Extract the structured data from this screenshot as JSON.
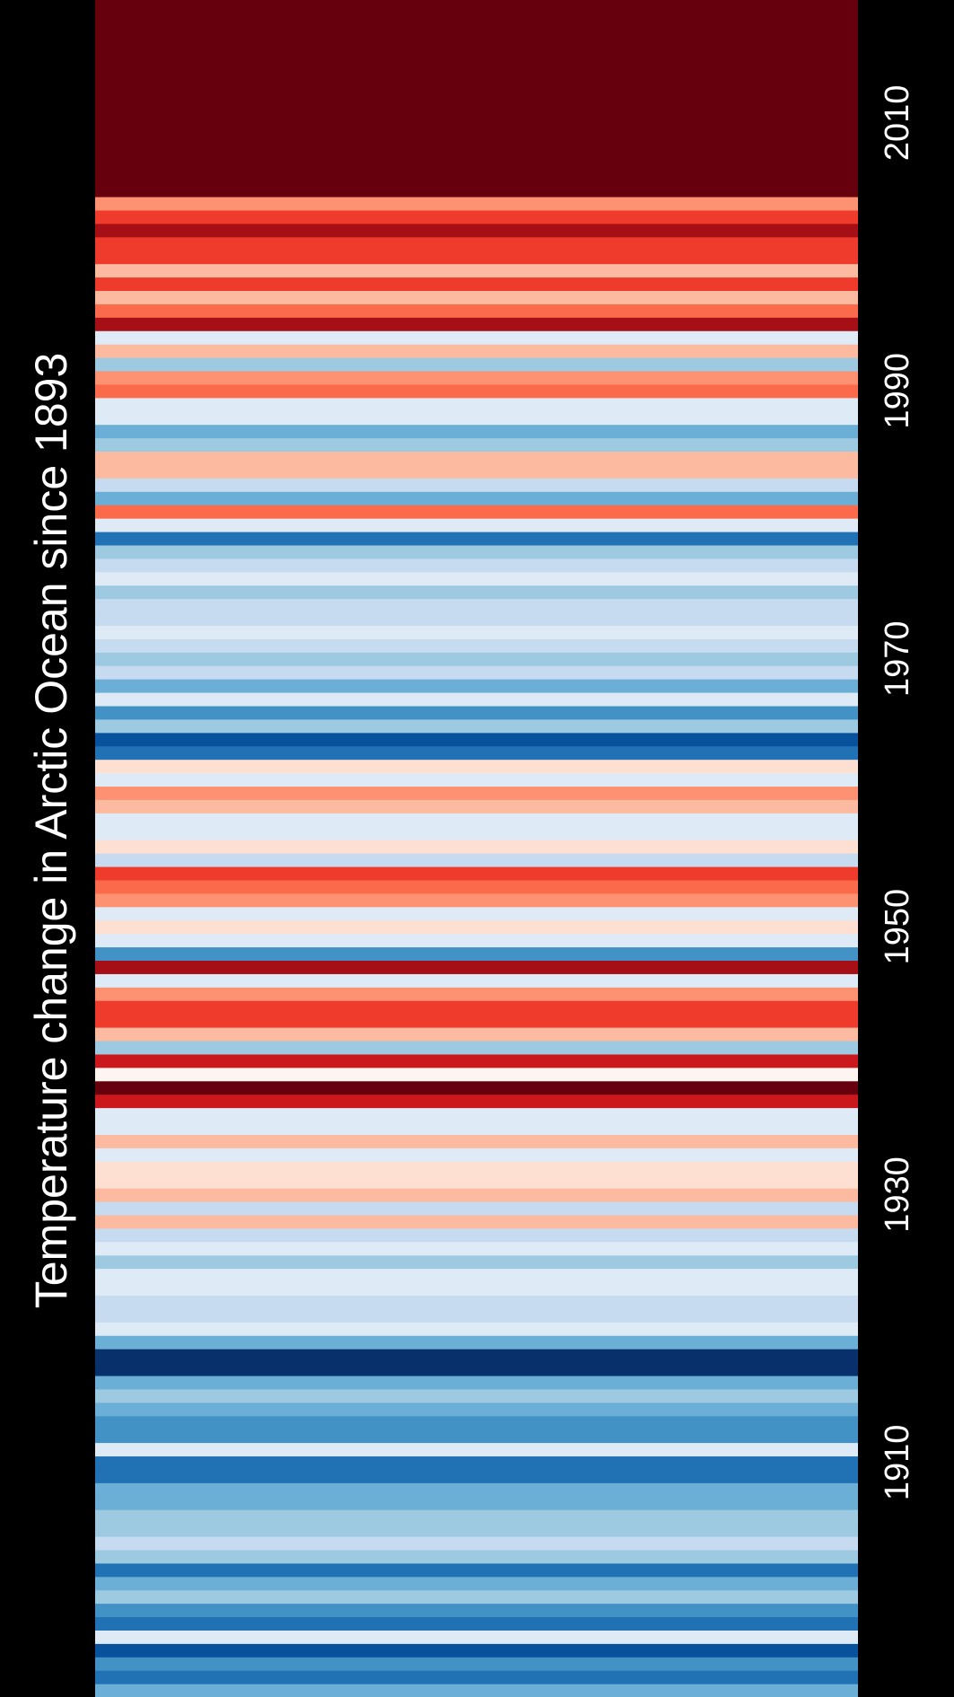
{
  "chart_data": {
    "type": "heatmap",
    "variant": "warming-stripes",
    "orientation": "vertical",
    "title": "Temperature change in Arctic Ocean since 1893",
    "time_axis": {
      "label": "",
      "direction": "bottom-to-top",
      "range": [
        1893,
        2022
      ],
      "ticks": [
        {
          "value": 1910,
          "label": "1910"
        },
        {
          "value": 1930,
          "label": "1930"
        },
        {
          "value": 1950,
          "label": "1950"
        },
        {
          "value": 1970,
          "label": "1970"
        },
        {
          "value": 1990,
          "label": "1990"
        },
        {
          "value": 2010,
          "label": "2010"
        }
      ]
    },
    "colormap": "RdBu_r",
    "legend": "none",
    "grid": false,
    "background": "#000000",
    "text_color": "#ffffff",
    "missing_years_color": "#67000d",
    "missing_years_range": [
      2008,
      2022
    ],
    "stripes": [
      {
        "year": 1893,
        "color": "#6baed6"
      },
      {
        "year": 1894,
        "color": "#2171b5"
      },
      {
        "year": 1895,
        "color": "#4292c6"
      },
      {
        "year": 1896,
        "color": "#08519c"
      },
      {
        "year": 1897,
        "color": "#deebf7"
      },
      {
        "year": 1898,
        "color": "#2171b5"
      },
      {
        "year": 1899,
        "color": "#4292c6"
      },
      {
        "year": 1900,
        "color": "#9ecae1"
      },
      {
        "year": 1901,
        "color": "#6baed6"
      },
      {
        "year": 1902,
        "color": "#2171b5"
      },
      {
        "year": 1903,
        "color": "#9ecae1"
      },
      {
        "year": 1904,
        "color": "#c6dbef"
      },
      {
        "year": 1905,
        "color": "#9ecae1"
      },
      {
        "year": 1906,
        "color": "#9ecae1"
      },
      {
        "year": 1907,
        "color": "#6baed6"
      },
      {
        "year": 1908,
        "color": "#6baed6"
      },
      {
        "year": 1909,
        "color": "#2171b5"
      },
      {
        "year": 1910,
        "color": "#2171b5"
      },
      {
        "year": 1911,
        "color": "#deebf7"
      },
      {
        "year": 1912,
        "color": "#4292c6"
      },
      {
        "year": 1913,
        "color": "#4292c6"
      },
      {
        "year": 1914,
        "color": "#6baed6"
      },
      {
        "year": 1915,
        "color": "#9ecae1"
      },
      {
        "year": 1916,
        "color": "#6baed6"
      },
      {
        "year": 1917,
        "color": "#08306b"
      },
      {
        "year": 1918,
        "color": "#08306b"
      },
      {
        "year": 1919,
        "color": "#6baed6"
      },
      {
        "year": 1920,
        "color": "#deebf7"
      },
      {
        "year": 1921,
        "color": "#c6dbef"
      },
      {
        "year": 1922,
        "color": "#c6dbef"
      },
      {
        "year": 1923,
        "color": "#deebf7"
      },
      {
        "year": 1924,
        "color": "#deebf7"
      },
      {
        "year": 1925,
        "color": "#9ecae1"
      },
      {
        "year": 1926,
        "color": "#deebf7"
      },
      {
        "year": 1927,
        "color": "#c6dbef"
      },
      {
        "year": 1928,
        "color": "#fcbba1"
      },
      {
        "year": 1929,
        "color": "#c6dbef"
      },
      {
        "year": 1930,
        "color": "#fcbba1"
      },
      {
        "year": 1931,
        "color": "#fee0d2"
      },
      {
        "year": 1932,
        "color": "#fee0d2"
      },
      {
        "year": 1933,
        "color": "#deebf7"
      },
      {
        "year": 1934,
        "color": "#fcbba1"
      },
      {
        "year": 1935,
        "color": "#deebf7"
      },
      {
        "year": 1936,
        "color": "#deebf7"
      },
      {
        "year": 1937,
        "color": "#cb181d"
      },
      {
        "year": 1938,
        "color": "#67000d"
      },
      {
        "year": 1939,
        "color": "#fff5f0"
      },
      {
        "year": 1940,
        "color": "#cb181d"
      },
      {
        "year": 1941,
        "color": "#9ecae1"
      },
      {
        "year": 1942,
        "color": "#fcbba1"
      },
      {
        "year": 1943,
        "color": "#ef3b2c"
      },
      {
        "year": 1944,
        "color": "#ef3b2c"
      },
      {
        "year": 1945,
        "color": "#fc9272"
      },
      {
        "year": 1946,
        "color": "#deebf7"
      },
      {
        "year": 1947,
        "color": "#a50f15"
      },
      {
        "year": 1948,
        "color": "#4292c6"
      },
      {
        "year": 1949,
        "color": "#deebf7"
      },
      {
        "year": 1950,
        "color": "#fee0d2"
      },
      {
        "year": 1951,
        "color": "#deebf7"
      },
      {
        "year": 1952,
        "color": "#fc9272"
      },
      {
        "year": 1953,
        "color": "#fb6a4a"
      },
      {
        "year": 1954,
        "color": "#ef3b2c"
      },
      {
        "year": 1955,
        "color": "#c6dbef"
      },
      {
        "year": 1956,
        "color": "#fee0d2"
      },
      {
        "year": 1957,
        "color": "#deebf7"
      },
      {
        "year": 1958,
        "color": "#deebf7"
      },
      {
        "year": 1959,
        "color": "#fcbba1"
      },
      {
        "year": 1960,
        "color": "#fc9272"
      },
      {
        "year": 1961,
        "color": "#deebf7"
      },
      {
        "year": 1962,
        "color": "#fee0d2"
      },
      {
        "year": 1963,
        "color": "#2171b5"
      },
      {
        "year": 1964,
        "color": "#08519c"
      },
      {
        "year": 1965,
        "color": "#9ecae1"
      },
      {
        "year": 1966,
        "color": "#4292c6"
      },
      {
        "year": 1967,
        "color": "#deebf7"
      },
      {
        "year": 1968,
        "color": "#6baed6"
      },
      {
        "year": 1969,
        "color": "#c6dbef"
      },
      {
        "year": 1970,
        "color": "#9ecae1"
      },
      {
        "year": 1971,
        "color": "#c6dbef"
      },
      {
        "year": 1972,
        "color": "#deebf7"
      },
      {
        "year": 1973,
        "color": "#c6dbef"
      },
      {
        "year": 1974,
        "color": "#c6dbef"
      },
      {
        "year": 1975,
        "color": "#9ecae1"
      },
      {
        "year": 1976,
        "color": "#deebf7"
      },
      {
        "year": 1977,
        "color": "#c6dbef"
      },
      {
        "year": 1978,
        "color": "#9ecae1"
      },
      {
        "year": 1979,
        "color": "#2171b5"
      },
      {
        "year": 1980,
        "color": "#deebf7"
      },
      {
        "year": 1981,
        "color": "#fb6a4a"
      },
      {
        "year": 1982,
        "color": "#6baed6"
      },
      {
        "year": 1983,
        "color": "#c6dbef"
      },
      {
        "year": 1984,
        "color": "#fcbba1"
      },
      {
        "year": 1985,
        "color": "#fcbba1"
      },
      {
        "year": 1986,
        "color": "#9ecae1"
      },
      {
        "year": 1987,
        "color": "#6baed6"
      },
      {
        "year": 1988,
        "color": "#deebf7"
      },
      {
        "year": 1989,
        "color": "#deebf7"
      },
      {
        "year": 1990,
        "color": "#fb6a4a"
      },
      {
        "year": 1991,
        "color": "#fc9272"
      },
      {
        "year": 1992,
        "color": "#9ecae1"
      },
      {
        "year": 1993,
        "color": "#fcbba1"
      },
      {
        "year": 1994,
        "color": "#deebf7"
      },
      {
        "year": 1995,
        "color": "#a50f15"
      },
      {
        "year": 1996,
        "color": "#fb6a4a"
      },
      {
        "year": 1997,
        "color": "#fcbba1"
      },
      {
        "year": 1998,
        "color": "#ef3b2c"
      },
      {
        "year": 1999,
        "color": "#fcbba1"
      },
      {
        "year": 2000,
        "color": "#ef3b2c"
      },
      {
        "year": 2001,
        "color": "#ef3b2c"
      },
      {
        "year": 2002,
        "color": "#a50f15"
      },
      {
        "year": 2003,
        "color": "#ef3b2c"
      },
      {
        "year": 2004,
        "color": "#fc9272"
      },
      {
        "year": 2005,
        "color": "#67000d"
      },
      {
        "year": 2006,
        "color": "#67000d"
      },
      {
        "year": 2007,
        "color": "#67000d"
      }
    ]
  }
}
